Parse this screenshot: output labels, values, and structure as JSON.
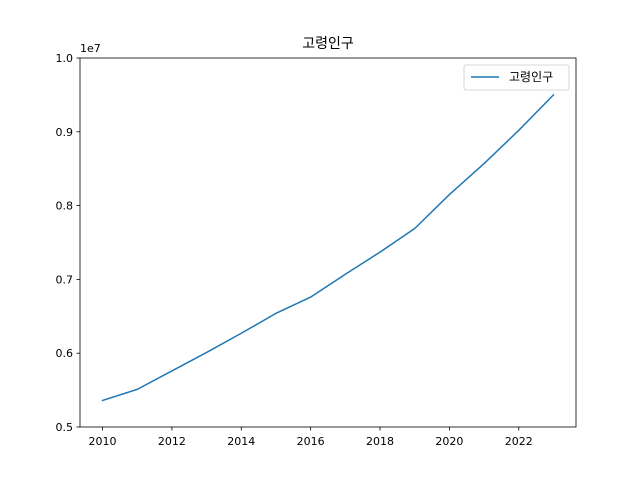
{
  "chart_data": {
    "type": "line",
    "title": "고령인구",
    "xlabel": "",
    "ylabel": "",
    "y_scale_label": "1e7",
    "x": [
      2010,
      2011,
      2012,
      2013,
      2014,
      2015,
      2016,
      2017,
      2018,
      2019,
      2020,
      2021,
      2022,
      2023
    ],
    "series": [
      {
        "name": "고령인구",
        "color": "#1f77b4",
        "values": [
          5360000,
          5510000,
          5760000,
          6010000,
          6270000,
          6540000,
          6760000,
          7070000,
          7370000,
          7690000,
          8150000,
          8570000,
          9020000,
          9500000
        ]
      }
    ],
    "xlim": [
      2009.35,
      2023.65
    ],
    "ylim": [
      5000000,
      10000000
    ],
    "x_ticks": [
      2010,
      2012,
      2014,
      2016,
      2018,
      2020,
      2022
    ],
    "y_ticks": [
      5000000,
      6000000,
      7000000,
      8000000,
      9000000,
      10000000
    ],
    "y_tick_labels": [
      "0.5",
      "0.6",
      "0.7",
      "0.8",
      "0.9",
      "1.0"
    ],
    "legend_position": "top-right",
    "grid": false
  }
}
